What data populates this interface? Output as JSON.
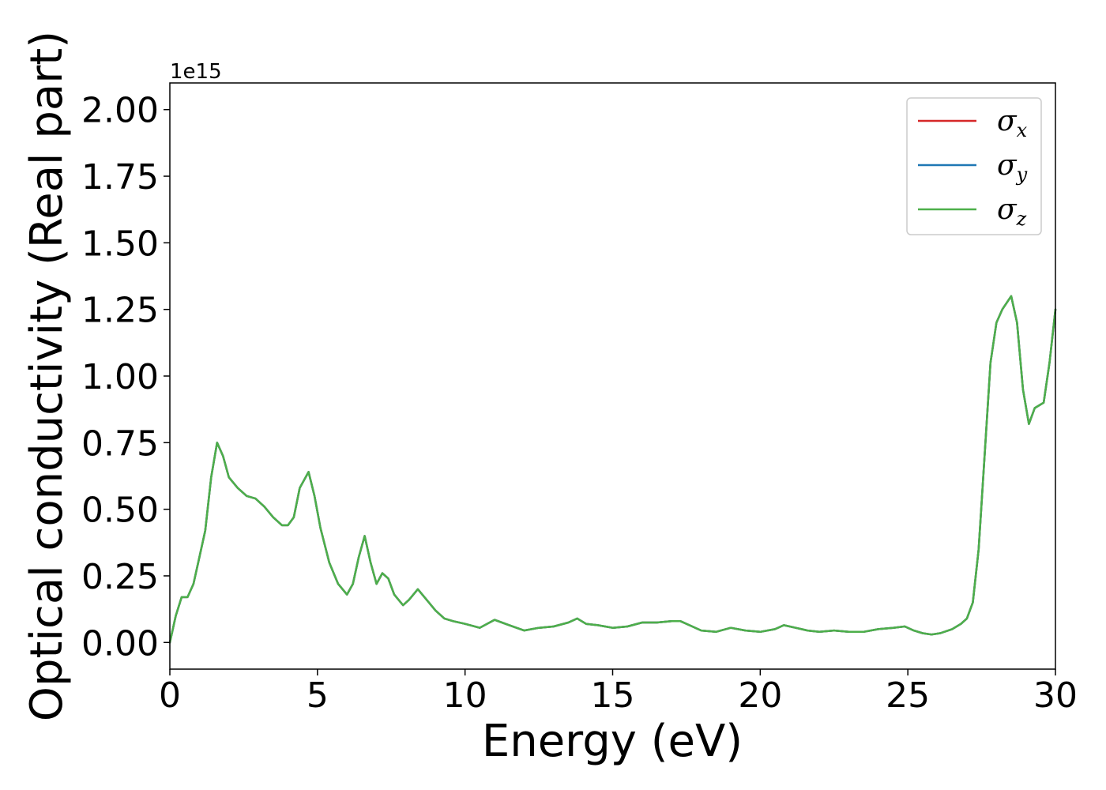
{
  "chart_data": {
    "type": "line",
    "title": "",
    "xlabel": "Energy (eV)",
    "ylabel": "Optical conductivity (Real part)",
    "y_offset_label": "1e15",
    "xlim": [
      0,
      30
    ],
    "ylim": [
      -0.1,
      2.1
    ],
    "x_ticks": [
      0,
      5,
      10,
      15,
      20,
      25,
      30
    ],
    "x_tick_labels": [
      "0",
      "5",
      "10",
      "15",
      "20",
      "25",
      "30"
    ],
    "y_ticks": [
      0,
      0.25,
      0.5,
      0.75,
      1.0,
      1.25,
      1.5,
      1.75,
      2.0
    ],
    "y_tick_labels": [
      "0.00",
      "0.25",
      "0.50",
      "0.75",
      "1.00",
      "1.25",
      "1.50",
      "1.75",
      "2.00"
    ],
    "grid": false,
    "legend_position": "top-right",
    "series": [
      {
        "name": "σ",
        "subscript": "x",
        "color": "#d62728"
      },
      {
        "name": "σ",
        "subscript": "y",
        "color": "#1f77b4"
      },
      {
        "name": "σ",
        "subscript": "z",
        "color": "#4daf4a"
      }
    ],
    "x": [
      0,
      0.2,
      0.4,
      0.6,
      0.8,
      1.0,
      1.2,
      1.4,
      1.6,
      1.8,
      2.0,
      2.3,
      2.6,
      2.9,
      3.2,
      3.5,
      3.8,
      4.0,
      4.2,
      4.4,
      4.7,
      4.9,
      5.1,
      5.4,
      5.7,
      6.0,
      6.2,
      6.4,
      6.6,
      6.8,
      7.0,
      7.2,
      7.4,
      7.6,
      7.9,
      8.1,
      8.4,
      8.7,
      9.0,
      9.3,
      9.6,
      10.0,
      10.5,
      11.0,
      11.5,
      12.0,
      12.5,
      13.0,
      13.5,
      13.8,
      14.1,
      14.5,
      15.0,
      15.5,
      16.0,
      16.5,
      17.0,
      17.3,
      17.6,
      18.0,
      18.5,
      19.0,
      19.5,
      20.0,
      20.5,
      20.8,
      21.2,
      21.6,
      22.0,
      22.5,
      23.0,
      23.5,
      24.0,
      24.5,
      24.9,
      25.2,
      25.5,
      25.8,
      26.1,
      26.5,
      26.8,
      27.0,
      27.2,
      27.4,
      27.6,
      27.8,
      28.0,
      28.2,
      28.5,
      28.7,
      28.9,
      29.1,
      29.3,
      29.6,
      29.8,
      30.0
    ],
    "values": [
      0.0,
      0.1,
      0.17,
      0.17,
      0.22,
      0.32,
      0.42,
      0.62,
      0.75,
      0.7,
      0.62,
      0.58,
      0.55,
      0.54,
      0.51,
      0.47,
      0.44,
      0.44,
      0.47,
      0.58,
      0.64,
      0.55,
      0.43,
      0.3,
      0.22,
      0.18,
      0.22,
      0.32,
      0.4,
      0.3,
      0.22,
      0.26,
      0.24,
      0.18,
      0.14,
      0.16,
      0.2,
      0.16,
      0.12,
      0.09,
      0.08,
      0.07,
      0.055,
      0.085,
      0.065,
      0.045,
      0.055,
      0.06,
      0.075,
      0.09,
      0.07,
      0.065,
      0.055,
      0.06,
      0.075,
      0.075,
      0.08,
      0.08,
      0.065,
      0.045,
      0.04,
      0.055,
      0.045,
      0.04,
      0.05,
      0.065,
      0.055,
      0.045,
      0.04,
      0.045,
      0.04,
      0.04,
      0.05,
      0.055,
      0.06,
      0.045,
      0.035,
      0.03,
      0.035,
      0.05,
      0.07,
      0.09,
      0.15,
      0.35,
      0.7,
      1.05,
      1.2,
      1.25,
      1.3,
      1.2,
      0.95,
      0.82,
      0.88,
      0.9,
      1.05,
      1.25
    ]
  }
}
